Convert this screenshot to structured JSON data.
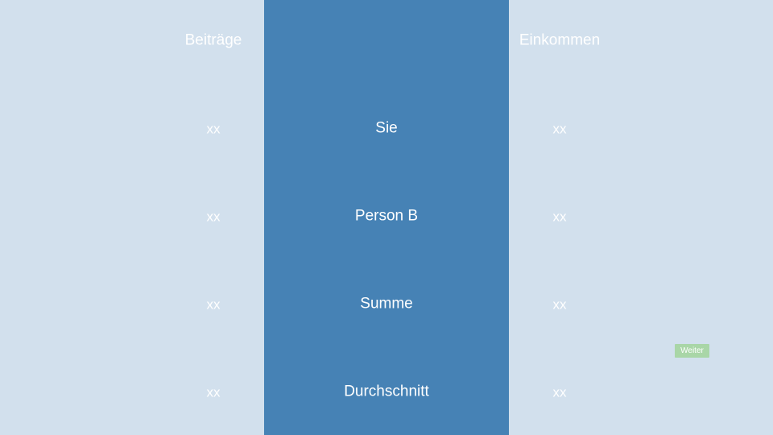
{
  "headers": {
    "left": "Beiträge",
    "right": "Einkommen"
  },
  "rows": [
    {
      "label": "Sie",
      "contribution": "xx",
      "income": "xx"
    },
    {
      "label": "Person B",
      "contribution": "xx",
      "income": "xx"
    },
    {
      "label": "Summe",
      "contribution": "xx",
      "income": "xx"
    },
    {
      "label": "Durchschnitt",
      "contribution": "xx",
      "income": "xx"
    }
  ],
  "next_button": {
    "label": "Weiter"
  },
  "colors": {
    "background": "#d2e0ed",
    "center_panel": "#4682b5",
    "button": "#a9d6a7",
    "text": "#ffffff"
  }
}
